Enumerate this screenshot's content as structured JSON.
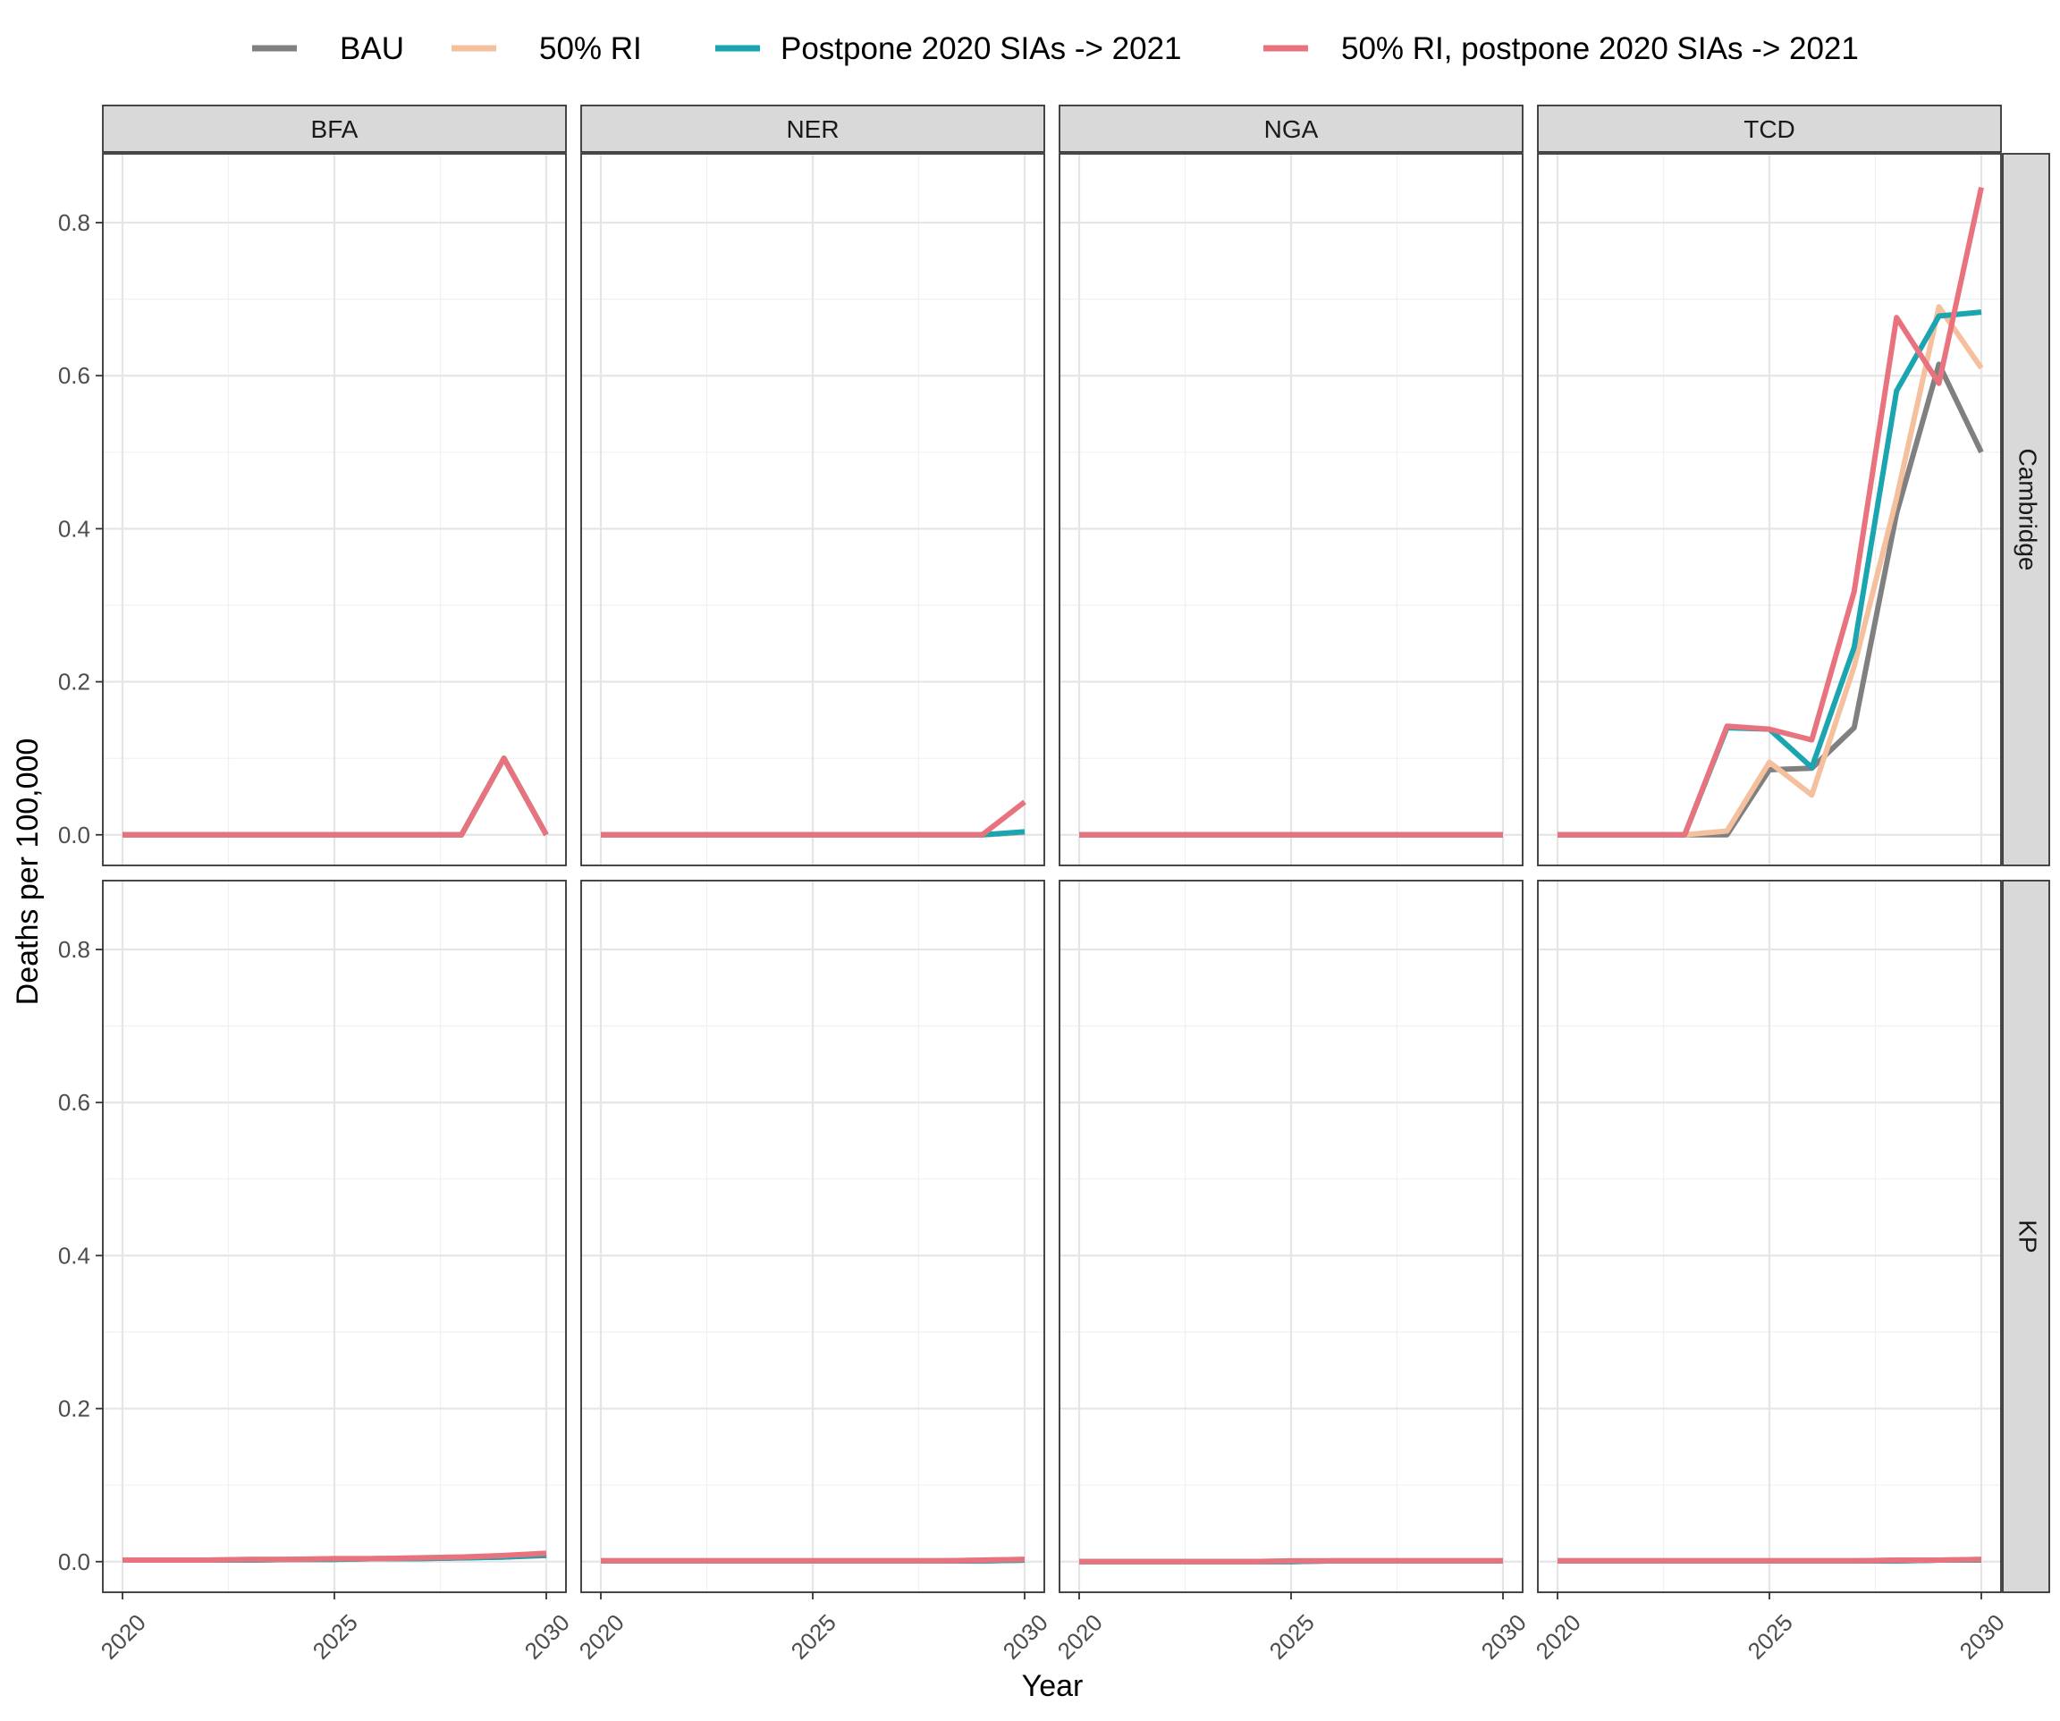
{
  "chart_data": {
    "type": "line",
    "xlabel": "Year",
    "ylabel": "Deaths per 100,000",
    "xlim": [
      2020,
      2030
    ],
    "ylim": [
      -0.04,
      0.89
    ],
    "x_ticks": [
      2020,
      2025,
      2030
    ],
    "y_ticks": [
      0.0,
      0.2,
      0.4,
      0.6,
      0.8
    ],
    "y_tick_labels": [
      "0.0",
      "0.2",
      "0.4",
      "0.6",
      "0.8"
    ],
    "grid": true,
    "legend_position": "top",
    "facet_columns": [
      "BFA",
      "NER",
      "NGA",
      "TCD"
    ],
    "facet_rows": [
      "Cambridge",
      "KP"
    ],
    "legend": [
      {
        "name": "BAU",
        "color": "#808080"
      },
      {
        "name": "50% RI",
        "color": "#F5C09E"
      },
      {
        "name": "Postpone 2020 SIAs -> 2021",
        "color": "#1AA5B0"
      },
      {
        "name": "50% RI, postpone 2020 SIAs -> 2021",
        "color": "#E8737F"
      }
    ],
    "x": [
      2020,
      2021,
      2022,
      2023,
      2024,
      2025,
      2026,
      2027,
      2028,
      2029,
      2030
    ],
    "panels": [
      {
        "row": "Cambridge",
        "col": "BFA",
        "series": [
          {
            "name": "BAU",
            "values": [
              0,
              0,
              0,
              0,
              0,
              0,
              0,
              0,
              0,
              0.1,
              0
            ]
          },
          {
            "name": "50% RI",
            "values": [
              0,
              0,
              0,
              0,
              0,
              0,
              0,
              0,
              0,
              0.1,
              0
            ]
          },
          {
            "name": "Postpone 2020 SIAs -> 2021",
            "values": [
              0,
              0,
              0,
              0,
              0,
              0,
              0,
              0,
              0,
              0.1,
              0
            ]
          },
          {
            "name": "50% RI, postpone 2020 SIAs -> 2021",
            "values": [
              0,
              0,
              0,
              0,
              0,
              0,
              0,
              0,
              0,
              0.1,
              0
            ]
          }
        ]
      },
      {
        "row": "Cambridge",
        "col": "NER",
        "series": [
          {
            "name": "BAU",
            "values": [
              0,
              0,
              0,
              0,
              0,
              0,
              0,
              0,
              0,
              0,
              0.003
            ]
          },
          {
            "name": "50% RI",
            "values": [
              0,
              0,
              0,
              0,
              0,
              0,
              0,
              0,
              0,
              0,
              0.003
            ]
          },
          {
            "name": "Postpone 2020 SIAs -> 2021",
            "values": [
              0,
              0,
              0,
              0,
              0,
              0,
              0,
              0,
              0,
              0,
              0.004
            ]
          },
          {
            "name": "50% RI, postpone 2020 SIAs -> 2021",
            "values": [
              0,
              0,
              0,
              0,
              0,
              0,
              0,
              0,
              0,
              0,
              0.043
            ]
          }
        ]
      },
      {
        "row": "Cambridge",
        "col": "NGA",
        "series": [
          {
            "name": "BAU",
            "values": [
              0,
              0,
              0,
              0,
              0,
              0,
              0,
              0,
              0,
              0,
              0
            ]
          },
          {
            "name": "50% RI",
            "values": [
              0,
              0,
              0,
              0,
              0,
              0,
              0,
              0,
              0,
              0,
              0
            ]
          },
          {
            "name": "Postpone 2020 SIAs -> 2021",
            "values": [
              0,
              0,
              0,
              0,
              0,
              0,
              0,
              0,
              0,
              0,
              0
            ]
          },
          {
            "name": "50% RI, postpone 2020 SIAs -> 2021",
            "values": [
              0,
              0,
              0,
              0,
              0,
              0,
              0,
              0,
              0,
              0,
              0
            ]
          }
        ]
      },
      {
        "row": "Cambridge",
        "col": "TCD",
        "series": [
          {
            "name": "BAU",
            "values": [
              0,
              0,
              0,
              0,
              0,
              0.085,
              0.087,
              0.14,
              0.42,
              0.615,
              0.5
            ]
          },
          {
            "name": "50% RI",
            "values": [
              0,
              0,
              0,
              0,
              0.005,
              0.095,
              0.052,
              0.22,
              0.44,
              0.69,
              0.61
            ]
          },
          {
            "name": "Postpone 2020 SIAs -> 2021",
            "values": [
              0,
              0,
              0,
              0,
              0.14,
              0.138,
              0.088,
              0.245,
              0.58,
              0.678,
              0.683
            ]
          },
          {
            "name": "50% RI, postpone 2020 SIAs -> 2021",
            "values": [
              0,
              0,
              0,
              0,
              0.142,
              0.138,
              0.124,
              0.318,
              0.676,
              0.59,
              0.846
            ]
          }
        ]
      },
      {
        "row": "KP",
        "col": "BFA",
        "series": [
          {
            "name": "BAU",
            "values": [
              0.002,
              0.002,
              0.002,
              0.002,
              0.003,
              0.003,
              0.004,
              0.004,
              0.005,
              0.006,
              0.008
            ]
          },
          {
            "name": "50% RI",
            "values": [
              0.002,
              0.002,
              0.002,
              0.003,
              0.003,
              0.004,
              0.004,
              0.005,
              0.006,
              0.008,
              0.011
            ]
          },
          {
            "name": "Postpone 2020 SIAs -> 2021",
            "values": [
              0.002,
              0.002,
              0.002,
              0.002,
              0.003,
              0.003,
              0.004,
              0.004,
              0.005,
              0.006,
              0.009
            ]
          },
          {
            "name": "50% RI, postpone 2020 SIAs -> 2021",
            "values": [
              0.002,
              0.002,
              0.002,
              0.003,
              0.003,
              0.004,
              0.004,
              0.005,
              0.006,
              0.008,
              0.011
            ]
          }
        ]
      },
      {
        "row": "KP",
        "col": "NER",
        "series": [
          {
            "name": "BAU",
            "values": [
              0.001,
              0.001,
              0.001,
              0.001,
              0.001,
              0.001,
              0.001,
              0.001,
              0.001,
              0.001,
              0.002
            ]
          },
          {
            "name": "50% RI",
            "values": [
              0.001,
              0.001,
              0.001,
              0.001,
              0.001,
              0.001,
              0.001,
              0.001,
              0.001,
              0.002,
              0.003
            ]
          },
          {
            "name": "Postpone 2020 SIAs -> 2021",
            "values": [
              0.001,
              0.001,
              0.001,
              0.001,
              0.001,
              0.001,
              0.001,
              0.001,
              0.001,
              0.001,
              0.002
            ]
          },
          {
            "name": "50% RI, postpone 2020 SIAs -> 2021",
            "values": [
              0.001,
              0.001,
              0.001,
              0.001,
              0.001,
              0.001,
              0.001,
              0.001,
              0.001,
              0.002,
              0.003
            ]
          }
        ]
      },
      {
        "row": "KP",
        "col": "NGA",
        "series": [
          {
            "name": "BAU",
            "values": [
              0.0,
              0.0,
              0.0,
              0.0,
              0.0,
              0.0,
              0.001,
              0.001,
              0.001,
              0.001,
              0.001
            ]
          },
          {
            "name": "50% RI",
            "values": [
              0.0,
              0.0,
              0.0,
              0.0,
              0.0,
              0.001,
              0.001,
              0.001,
              0.001,
              0.001,
              0.001
            ]
          },
          {
            "name": "Postpone 2020 SIAs -> 2021",
            "values": [
              0.0,
              0.0,
              0.0,
              0.0,
              0.0,
              0.0,
              0.001,
              0.001,
              0.001,
              0.001,
              0.001
            ]
          },
          {
            "name": "50% RI, postpone 2020 SIAs -> 2021",
            "values": [
              0.0,
              0.0,
              0.0,
              0.0,
              0.0,
              0.001,
              0.001,
              0.001,
              0.001,
              0.001,
              0.001
            ]
          }
        ]
      },
      {
        "row": "KP",
        "col": "TCD",
        "series": [
          {
            "name": "BAU",
            "values": [
              0.001,
              0.001,
              0.001,
              0.001,
              0.001,
              0.001,
              0.001,
              0.001,
              0.001,
              0.002,
              0.002
            ]
          },
          {
            "name": "50% RI",
            "values": [
              0.001,
              0.001,
              0.001,
              0.001,
              0.001,
              0.001,
              0.001,
              0.001,
              0.002,
              0.002,
              0.003
            ]
          },
          {
            "name": "Postpone 2020 SIAs -> 2021",
            "values": [
              0.001,
              0.001,
              0.001,
              0.001,
              0.001,
              0.001,
              0.001,
              0.001,
              0.001,
              0.002,
              0.002
            ]
          },
          {
            "name": "50% RI, postpone 2020 SIAs -> 2021",
            "values": [
              0.001,
              0.001,
              0.001,
              0.001,
              0.001,
              0.001,
              0.001,
              0.001,
              0.002,
              0.002,
              0.003
            ]
          }
        ]
      }
    ]
  }
}
